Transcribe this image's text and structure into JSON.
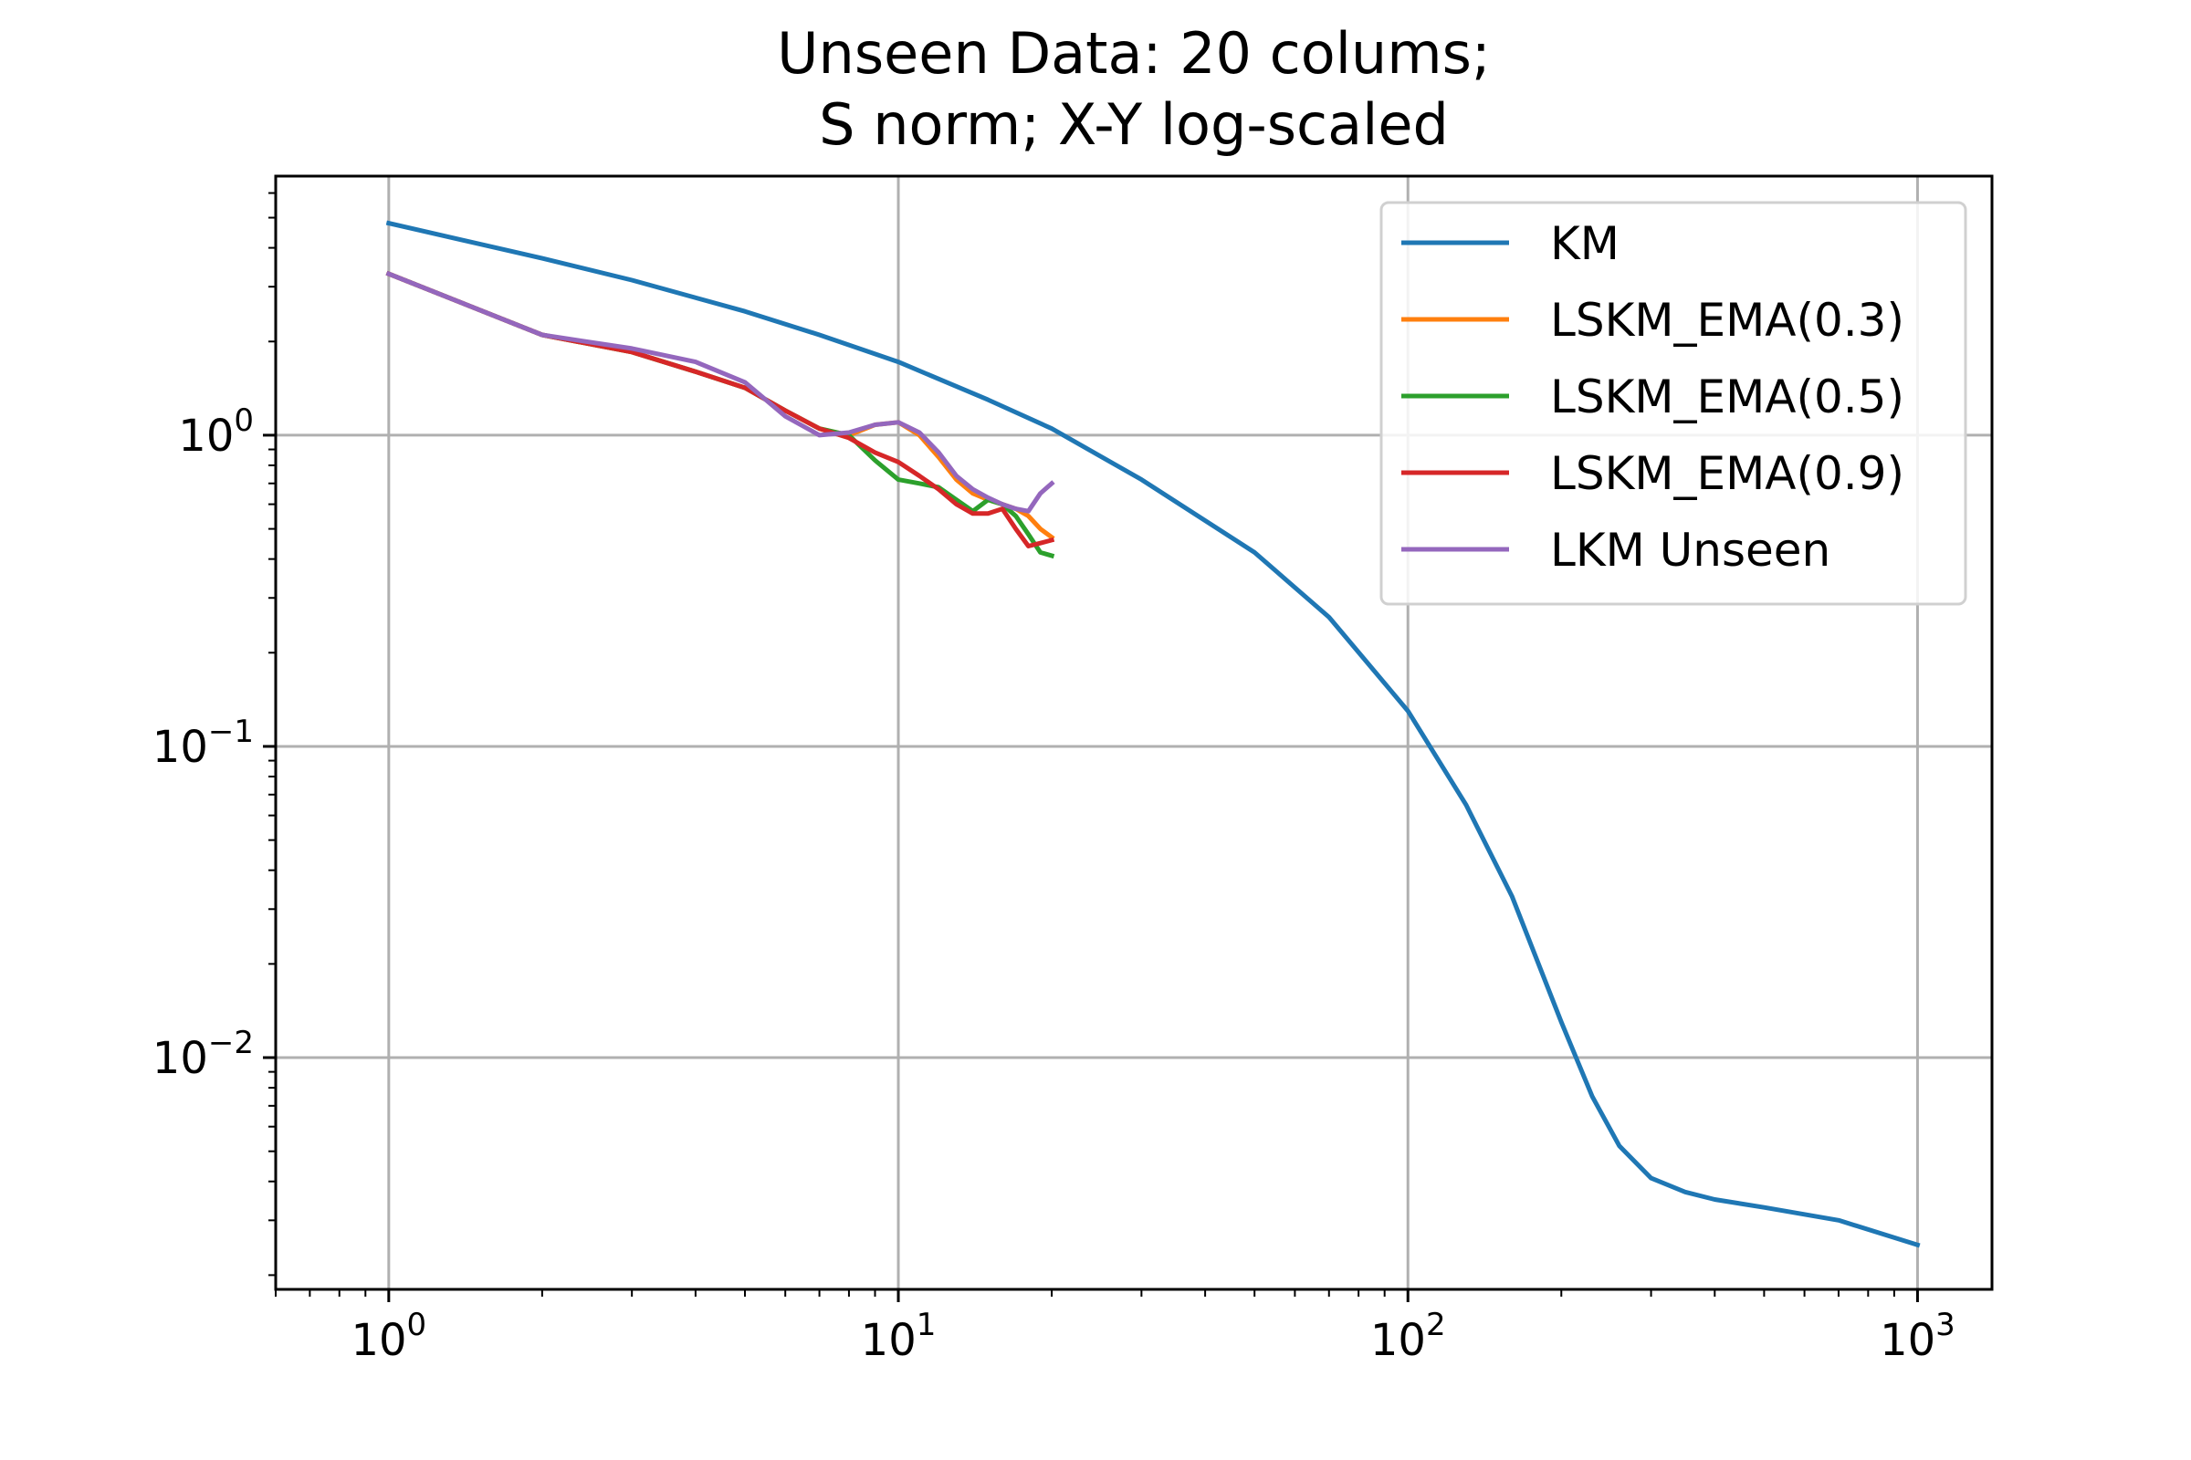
{
  "chart_data": {
    "type": "line",
    "title_lines": [
      "Unseen Data: 20 colums;",
      "S norm; X-Y log-scaled"
    ],
    "xlabel": "",
    "ylabel": "",
    "xscale": "log",
    "yscale": "log",
    "xlim": [
      0.6,
      1400
    ],
    "ylim": [
      0.0018,
      6.8
    ],
    "grid": true,
    "legend_position": "top-right",
    "x_ticks": [
      {
        "value": 1,
        "base": "10",
        "exp": "0"
      },
      {
        "value": 10,
        "base": "10",
        "exp": "1"
      },
      {
        "value": 100,
        "base": "10",
        "exp": "2"
      },
      {
        "value": 1000,
        "base": "10",
        "exp": "3"
      }
    ],
    "y_ticks": [
      {
        "value": 1,
        "base": "10",
        "exp": "0"
      },
      {
        "value": 0.1,
        "base": "10",
        "exp": "−1"
      },
      {
        "value": 0.01,
        "base": "10",
        "exp": "−2"
      }
    ],
    "series": [
      {
        "name": "KM",
        "color": "#1f77b4",
        "x": [
          1,
          2,
          3,
          5,
          7,
          10,
          15,
          20,
          30,
          50,
          70,
          100,
          130,
          160,
          200,
          230,
          260,
          300,
          350,
          400,
          500,
          700,
          1000
        ],
        "y": [
          4.8,
          3.7,
          3.15,
          2.5,
          2.1,
          1.72,
          1.3,
          1.05,
          0.72,
          0.42,
          0.26,
          0.13,
          0.065,
          0.033,
          0.013,
          0.0075,
          0.0052,
          0.0041,
          0.0037,
          0.0035,
          0.0033,
          0.003,
          0.0025
        ]
      },
      {
        "name": "LSKM_EMA(0.3)",
        "color": "#ff7f0e",
        "x": [
          1,
          2,
          3,
          4,
          5,
          6,
          7,
          8,
          9,
          10,
          11,
          12,
          13,
          14,
          15,
          16,
          17,
          18,
          19,
          20
        ],
        "y": [
          3.3,
          2.1,
          1.85,
          1.6,
          1.42,
          1.2,
          1.05,
          1.0,
          1.08,
          1.1,
          1.0,
          0.85,
          0.72,
          0.65,
          0.62,
          0.6,
          0.58,
          0.55,
          0.5,
          0.47
        ]
      },
      {
        "name": "LSKM_EMA(0.5)",
        "color": "#2ca02c",
        "x": [
          1,
          2,
          3,
          4,
          5,
          6,
          7,
          8,
          9,
          10,
          11,
          12,
          13,
          14,
          15,
          16,
          17,
          18,
          19,
          20
        ],
        "y": [
          3.3,
          2.1,
          1.85,
          1.6,
          1.42,
          1.2,
          1.05,
          1.0,
          0.83,
          0.72,
          0.7,
          0.68,
          0.62,
          0.57,
          0.62,
          0.6,
          0.55,
          0.48,
          0.42,
          0.41
        ]
      },
      {
        "name": "LSKM_EMA(0.9)",
        "color": "#d62728",
        "x": [
          1,
          2,
          3,
          4,
          5,
          6,
          7,
          8,
          9,
          10,
          11,
          12,
          13,
          14,
          15,
          16,
          17,
          18,
          19,
          20
        ],
        "y": [
          3.3,
          2.1,
          1.85,
          1.6,
          1.42,
          1.2,
          1.05,
          0.98,
          0.88,
          0.82,
          0.74,
          0.67,
          0.6,
          0.56,
          0.56,
          0.58,
          0.5,
          0.44,
          0.45,
          0.46
        ]
      },
      {
        "name": "LKM Unseen",
        "color": "#9467bd",
        "x": [
          1,
          2,
          3,
          4,
          5,
          6,
          7,
          8,
          9,
          10,
          11,
          12,
          13,
          14,
          15,
          16,
          17,
          18,
          19,
          20
        ],
        "y": [
          3.3,
          2.1,
          1.9,
          1.72,
          1.48,
          1.15,
          1.0,
          1.02,
          1.08,
          1.1,
          1.02,
          0.88,
          0.74,
          0.67,
          0.63,
          0.6,
          0.58,
          0.57,
          0.65,
          0.7
        ]
      }
    ]
  }
}
